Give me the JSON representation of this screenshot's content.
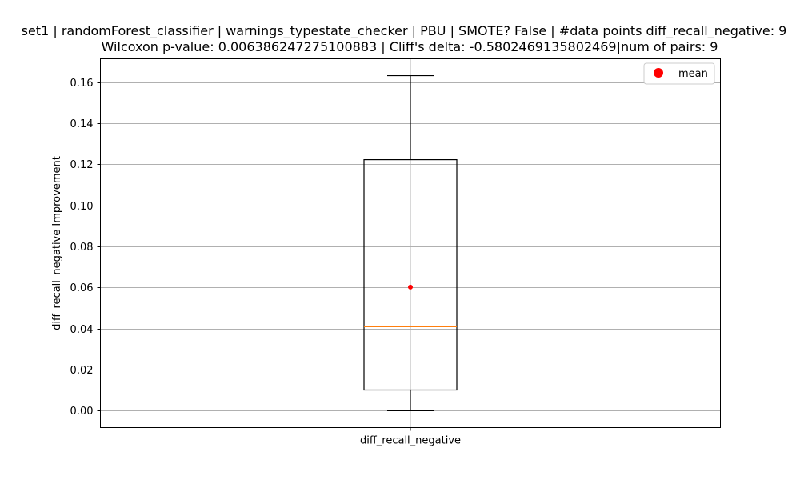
{
  "chart_data": {
    "type": "box",
    "title_line1": "set1 | randomForest_classifier | warnings_typestate_checker | PBU | SMOTE? False | #data points diff_recall_negative: 9",
    "title_line2": "Wilcoxon p-value: 0.006386247275100883 | Cliff's delta: -0.5802469135802469|num of pairs: 9",
    "ylabel": "diff_recall_negative Improvement",
    "categories": [
      "diff_recall_negative"
    ],
    "ylim": [
      -0.0082,
      0.1713
    ],
    "yticks": [
      0.0,
      0.02,
      0.04,
      0.06,
      0.08,
      0.1,
      0.12,
      0.14,
      0.16
    ],
    "ytick_labels": [
      "0.00",
      "0.02",
      "0.04",
      "0.06",
      "0.08",
      "0.10",
      "0.12",
      "0.14",
      "0.16"
    ],
    "grid": true,
    "legend_position": "top-right",
    "legend": [
      {
        "label": "mean",
        "color": "#ff0000",
        "marker": "circle"
      }
    ],
    "box": {
      "whisker_low": 0.0,
      "q1": 0.0101,
      "median": 0.0409,
      "q3": 0.1222,
      "whisker_high": 0.1631,
      "mean": 0.0602
    },
    "colors": {
      "box": "#000000",
      "median": "#ff7f0e",
      "mean": "#ff0000",
      "grid": "#b0b0b0"
    }
  }
}
